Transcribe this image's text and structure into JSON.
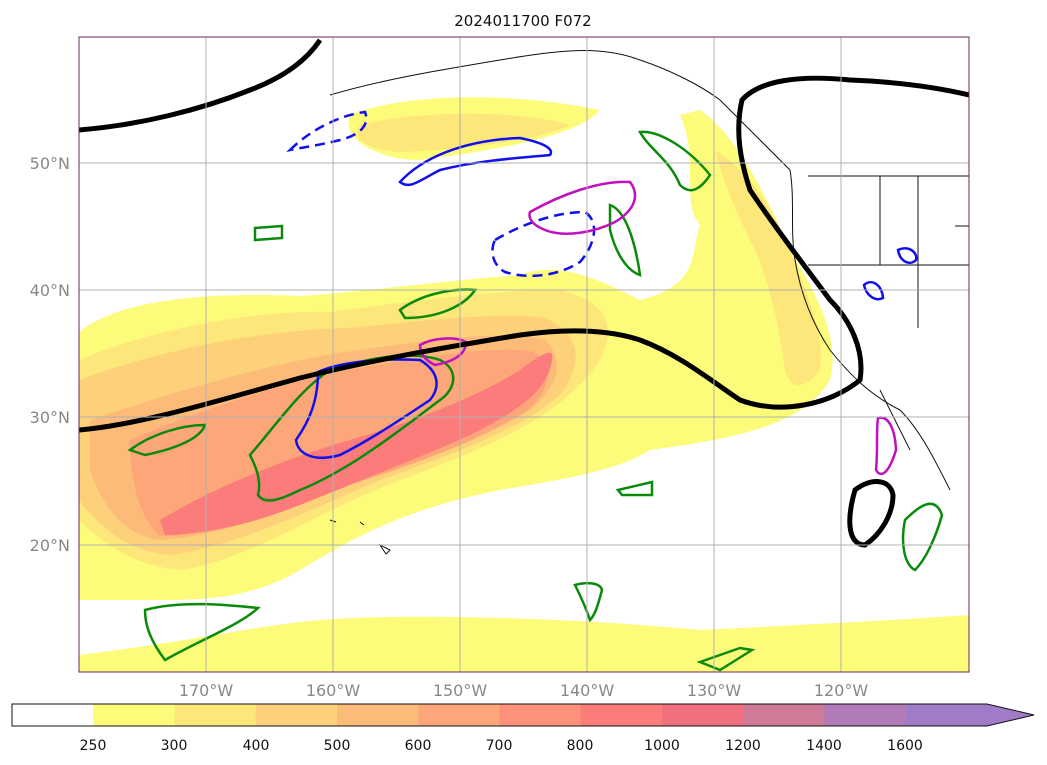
{
  "figure": {
    "title": "2024011700 F072"
  },
  "map": {
    "projection": "lat-lon",
    "region": "North-East Pacific and western North America",
    "lon_range": [
      -180,
      -110
    ],
    "lat_range": [
      10,
      60
    ],
    "grid": true,
    "lat_labels": [
      "50°N",
      "40°N",
      "30°N",
      "20°N"
    ],
    "lon_labels": [
      "170°W",
      "160°W",
      "150°W",
      "140°W",
      "130°W",
      "120°W"
    ]
  },
  "colorbar": {
    "tick_labels": [
      "250",
      "300",
      "400",
      "500",
      "600",
      "700",
      "800",
      "1000",
      "1200",
      "1400",
      "1600"
    ],
    "colors": [
      "#ffffff",
      "#fdfb7a",
      "#fde67a",
      "#fdd07a",
      "#fdbb7a",
      "#fda67a",
      "#fd917a",
      "#fb7c7b",
      "#f07080",
      "#d07a9a",
      "#b07bb8",
      "#a07cc8"
    ],
    "extend": "max"
  },
  "overlays": {
    "black_contour_color": "#000000",
    "green_contour_color": "#0a8a0a",
    "blue_contour_color": "#1010ee",
    "magenta_contour_color": "#c010c0"
  }
}
